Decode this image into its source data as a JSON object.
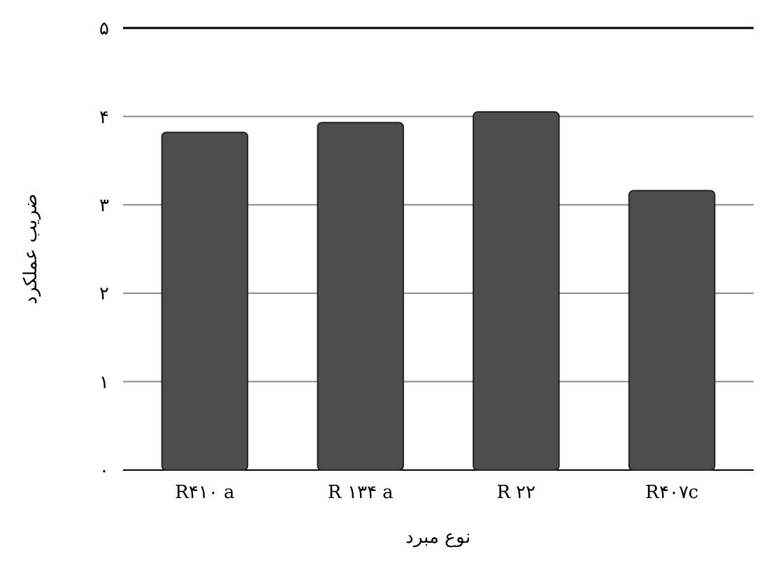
{
  "chart_data": {
    "type": "bar",
    "xlabel": "نوع مبرد",
    "ylabel": "ضریب عملکرد",
    "categories": [
      "R۴۱۰ a",
      "R ۱۳۴ a",
      "R ۲۲",
      "R۴۰۷c"
    ],
    "values": [
      3.82,
      3.93,
      4.05,
      3.16
    ],
    "color": "#4d4d4d",
    "ylim": [
      0,
      5
    ],
    "yticks": [
      {
        "value": 0,
        "label": "۰"
      },
      {
        "value": 1,
        "label": "۱"
      },
      {
        "value": 2,
        "label": "۲"
      },
      {
        "value": 3,
        "label": "۳"
      },
      {
        "value": 4,
        "label": "۴"
      },
      {
        "value": 5,
        "label": "۵"
      }
    ],
    "grid": true
  }
}
